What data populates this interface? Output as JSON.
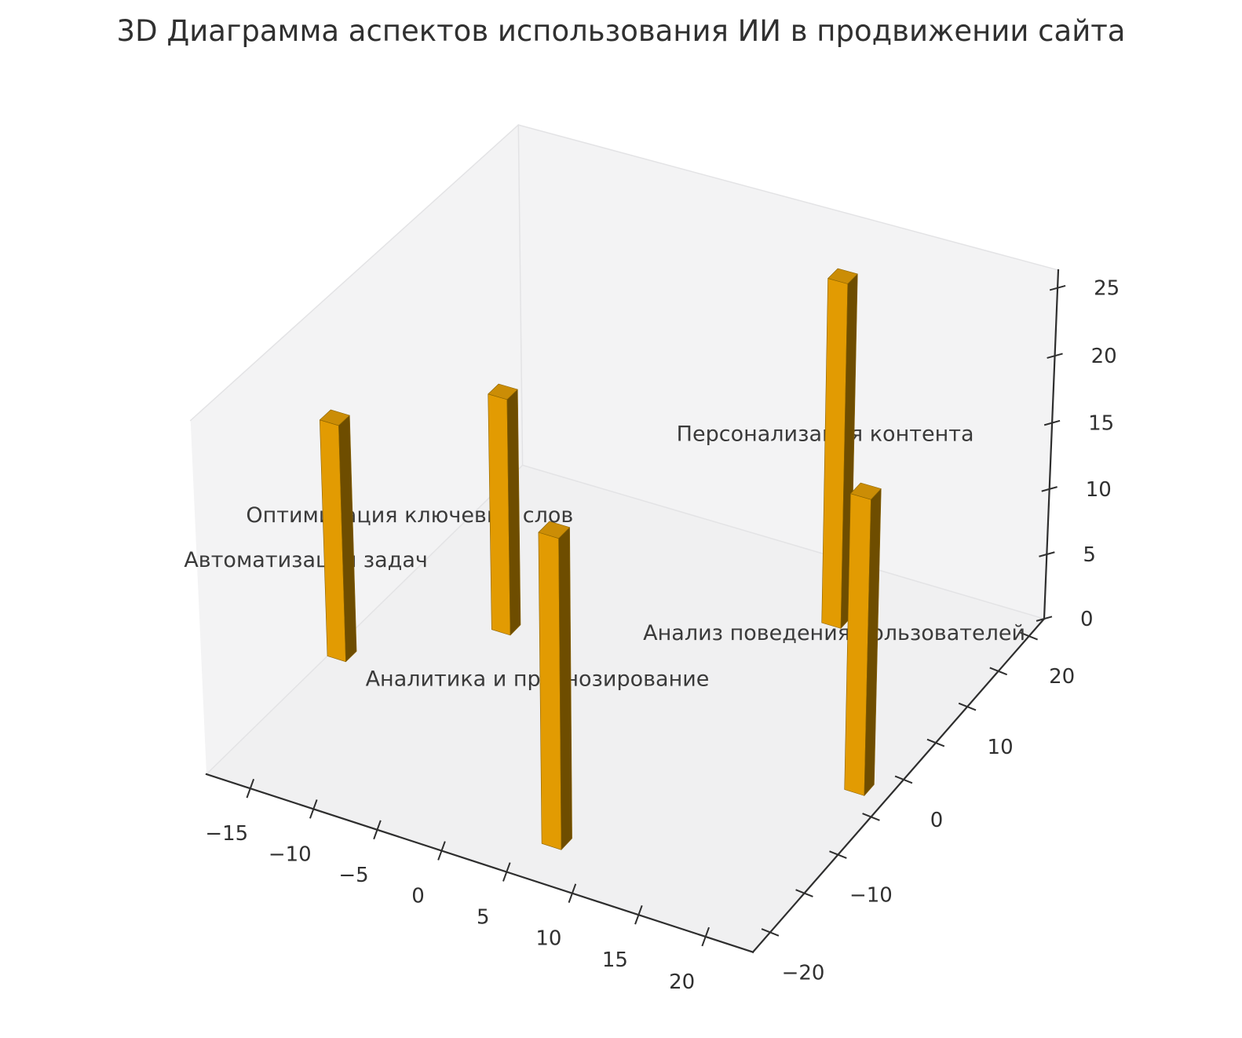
{
  "title": "3D Диаграмма аспектов использования ИИ в продвижении сайта",
  "background": "#ffffff",
  "chart_data": {
    "type": "bar",
    "subtype": "bar3d",
    "title": "3D Диаграмма аспектов использования ИИ в продвижении сайта",
    "categories": [
      "Автоматизация задач",
      "Оптимизация ключевых слов",
      "Аналитика и прогнозирование",
      "Персонализация контента",
      "Анализ поведения пользователей"
    ],
    "values": [
      18,
      18,
      23,
      26,
      22
    ],
    "bars": [
      {
        "label": "Автоматизация задач",
        "x": -18.5,
        "y": -6.0,
        "dx": 1.5,
        "dy": 1.5,
        "dz": 18,
        "label_anchor": [
          -20.0,
          -6.0,
          7.0
        ]
      },
      {
        "label": "Оптимизация ключевых слов",
        "x": -10.0,
        "y": 2.5,
        "dx": 1.5,
        "dy": 1.5,
        "dz": 18,
        "label_anchor": [
          -16.5,
          2.5,
          7.0
        ]
      },
      {
        "label": "Аналитика и прогнозирование",
        "x": 5.5,
        "y": -18.5,
        "dx": 1.5,
        "dy": 1.5,
        "dz": 23,
        "label_anchor": [
          5.3,
          -18.5,
          12.3
        ]
      },
      {
        "label": "Персонализация контента",
        "x": 10.0,
        "y": 14.5,
        "dx": 1.5,
        "dy": 1.5,
        "dz": 26,
        "label_anchor": [
          10.0,
          14.5,
          14.5
        ]
      },
      {
        "label": "Анализ поведения пользователей",
        "x": 20.5,
        "y": -3.0,
        "dx": 1.5,
        "dy": 1.5,
        "dz": 22,
        "label_anchor": [
          19.5,
          -3.0,
          11.5
        ]
      }
    ],
    "axes": {
      "xlim": [
        -18.5,
        23.5
      ],
      "ylim": [
        -22.5,
        22.5
      ],
      "zlim": [
        0,
        26.3
      ],
      "xticks": [
        -15,
        -10,
        -5,
        0,
        5,
        10,
        15,
        20
      ],
      "yticks": [
        -20,
        -10,
        0,
        10,
        20
      ],
      "yticks_minor": [
        -15,
        -5,
        5,
        15
      ],
      "zticks": [
        0,
        5,
        10,
        15,
        20,
        25
      ],
      "grid": false,
      "legend": "none"
    },
    "colors": {
      "bar_front": "#E29B02",
      "bar_side": "#6E4D00",
      "bar_top": "#CB8D06",
      "bar_edge": "#8A6200",
      "pane_wall": "#f3f3f4",
      "pane_floor": "#f0f0f1",
      "pane_edge": "#e3e3e5",
      "axis_line": "#2e2e2e",
      "text": "#303030"
    }
  }
}
